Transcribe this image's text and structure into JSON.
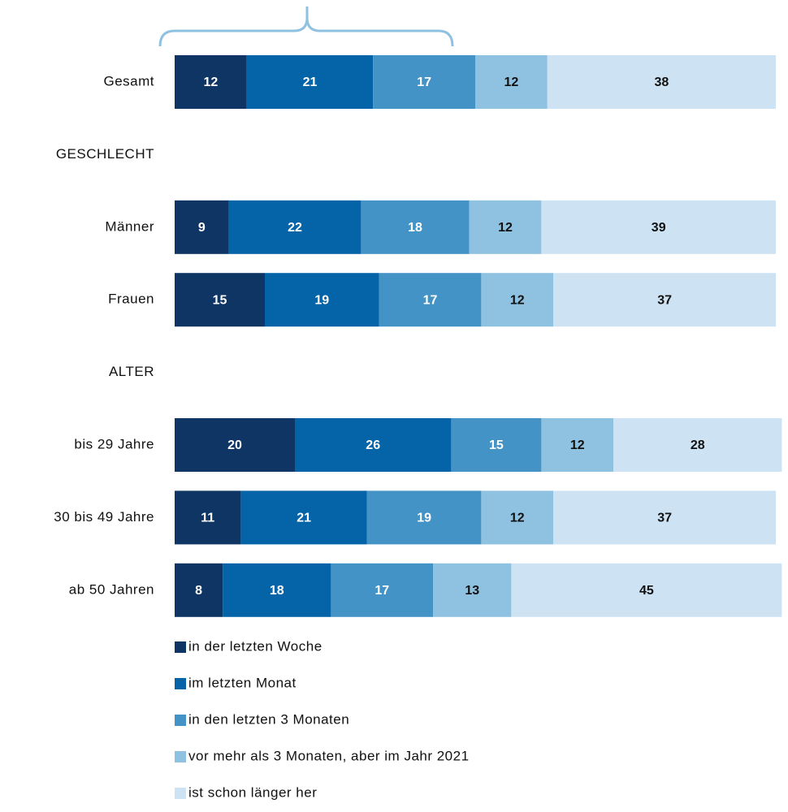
{
  "chart_data": {
    "type": "stacked_bar_horizontal",
    "categories": [
      "Gesamt",
      "GESCHLECHT",
      "Männer",
      "Frauen",
      "ALTER",
      "bis 29 Jahre",
      "30 bis 49 Jahre",
      "ab 50 Jahren"
    ],
    "series": [
      {
        "name": "in der letzten Woche",
        "color": "#0f3564",
        "values": [
          12,
          null,
          9,
          15,
          null,
          20,
          11,
          8
        ]
      },
      {
        "name": "im letzten Monat",
        "color": "#0563a8",
        "values": [
          21,
          null,
          22,
          19,
          null,
          26,
          21,
          18
        ]
      },
      {
        "name": "in den letzten 3 Monaten",
        "color": "#4393c6",
        "values": [
          17,
          null,
          18,
          17,
          null,
          15,
          19,
          17
        ]
      },
      {
        "name": "vor mehr als 3 Monaten, aber im Jahr 2021",
        "color": "#8fc1e0",
        "values": [
          12,
          null,
          12,
          12,
          null,
          12,
          12,
          13
        ]
      },
      {
        "name": "ist schon länger her",
        "color": "#cde3f3",
        "values": [
          38,
          null,
          39,
          37,
          null,
          28,
          37,
          45
        ]
      }
    ],
    "xlim": [
      0,
      100
    ],
    "legend": "bottom"
  }
}
